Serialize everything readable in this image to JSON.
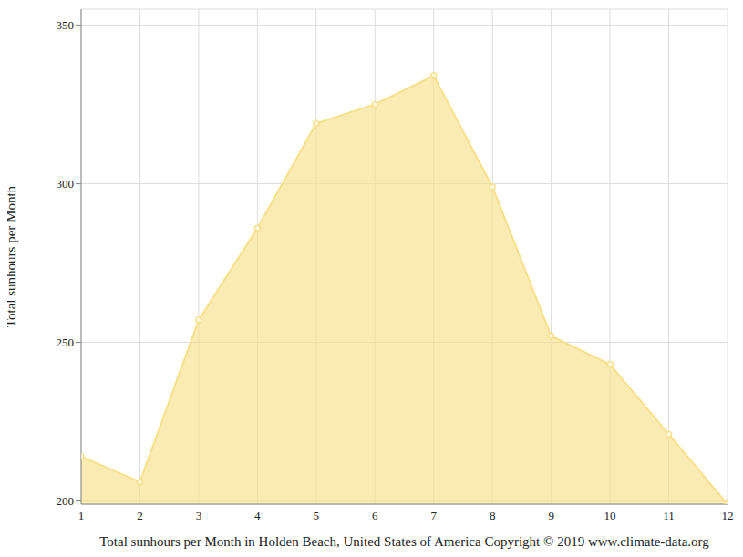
{
  "chart_data": {
    "type": "area",
    "xlabel": "Total sunhours per Month in Holden Beach, United States of America Copyright © 2019 www.climate-data.org",
    "ylabel": "Total sunhours per Month",
    "x": [
      1,
      2,
      3,
      4,
      5,
      6,
      7,
      8,
      9,
      10,
      11,
      12
    ],
    "values": [
      214,
      206,
      257,
      286,
      319,
      325,
      334,
      299,
      252,
      243,
      221,
      199
    ],
    "color": "#f7e08a",
    "marker": "circle",
    "xlim": [
      1,
      12
    ],
    "xticks": [
      1,
      2,
      3,
      4,
      5,
      6,
      7,
      8,
      9,
      10,
      11,
      12
    ],
    "ylim": [
      199,
      355
    ],
    "yticks": [
      200,
      250,
      300,
      350
    ],
    "grid": true
  }
}
